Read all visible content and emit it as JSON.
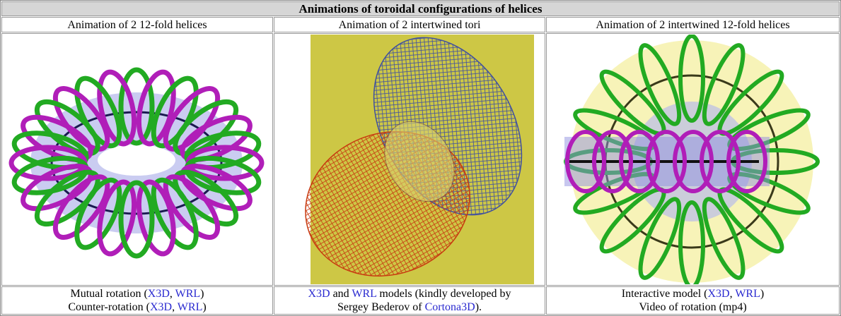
{
  "table": {
    "title": "Animations of toroidal configurations of helices",
    "headers": [
      "Animation of 2 12-fold helices",
      "Animation of 2 intertwined tori",
      "Animation of 2 intertwined  12-fold helices"
    ],
    "captions": [
      [
        [
          {
            "text": "Mutual rotation ("
          },
          {
            "text": "X3D",
            "link": true
          },
          {
            "text": ", "
          },
          {
            "text": "WRL",
            "link": true
          },
          {
            "text": ")"
          }
        ],
        [
          {
            "text": "Counter-rotation ("
          },
          {
            "text": "X3D",
            "link": true
          },
          {
            "text": ", "
          },
          {
            "text": "WRL",
            "link": true
          },
          {
            "text": ")"
          }
        ]
      ],
      [
        [
          {
            "text": "X3D",
            "link": true
          },
          {
            "text": " and "
          },
          {
            "text": "WRL",
            "link": true
          },
          {
            "text": " models (kindly developed by"
          }
        ],
        [
          {
            "text": "Sergey Bederov of "
          },
          {
            "text": "Cortona3D",
            "link": true
          },
          {
            "text": ")."
          }
        ]
      ],
      [
        [
          {
            "text": "Interactive model ("
          },
          {
            "text": "X3D",
            "link": true
          },
          {
            "text": ", "
          },
          {
            "text": "WRL",
            "link": true
          },
          {
            "text": ")"
          }
        ],
        [
          {
            "text": "Video of rotation (mp4)"
          }
        ]
      ]
    ]
  }
}
